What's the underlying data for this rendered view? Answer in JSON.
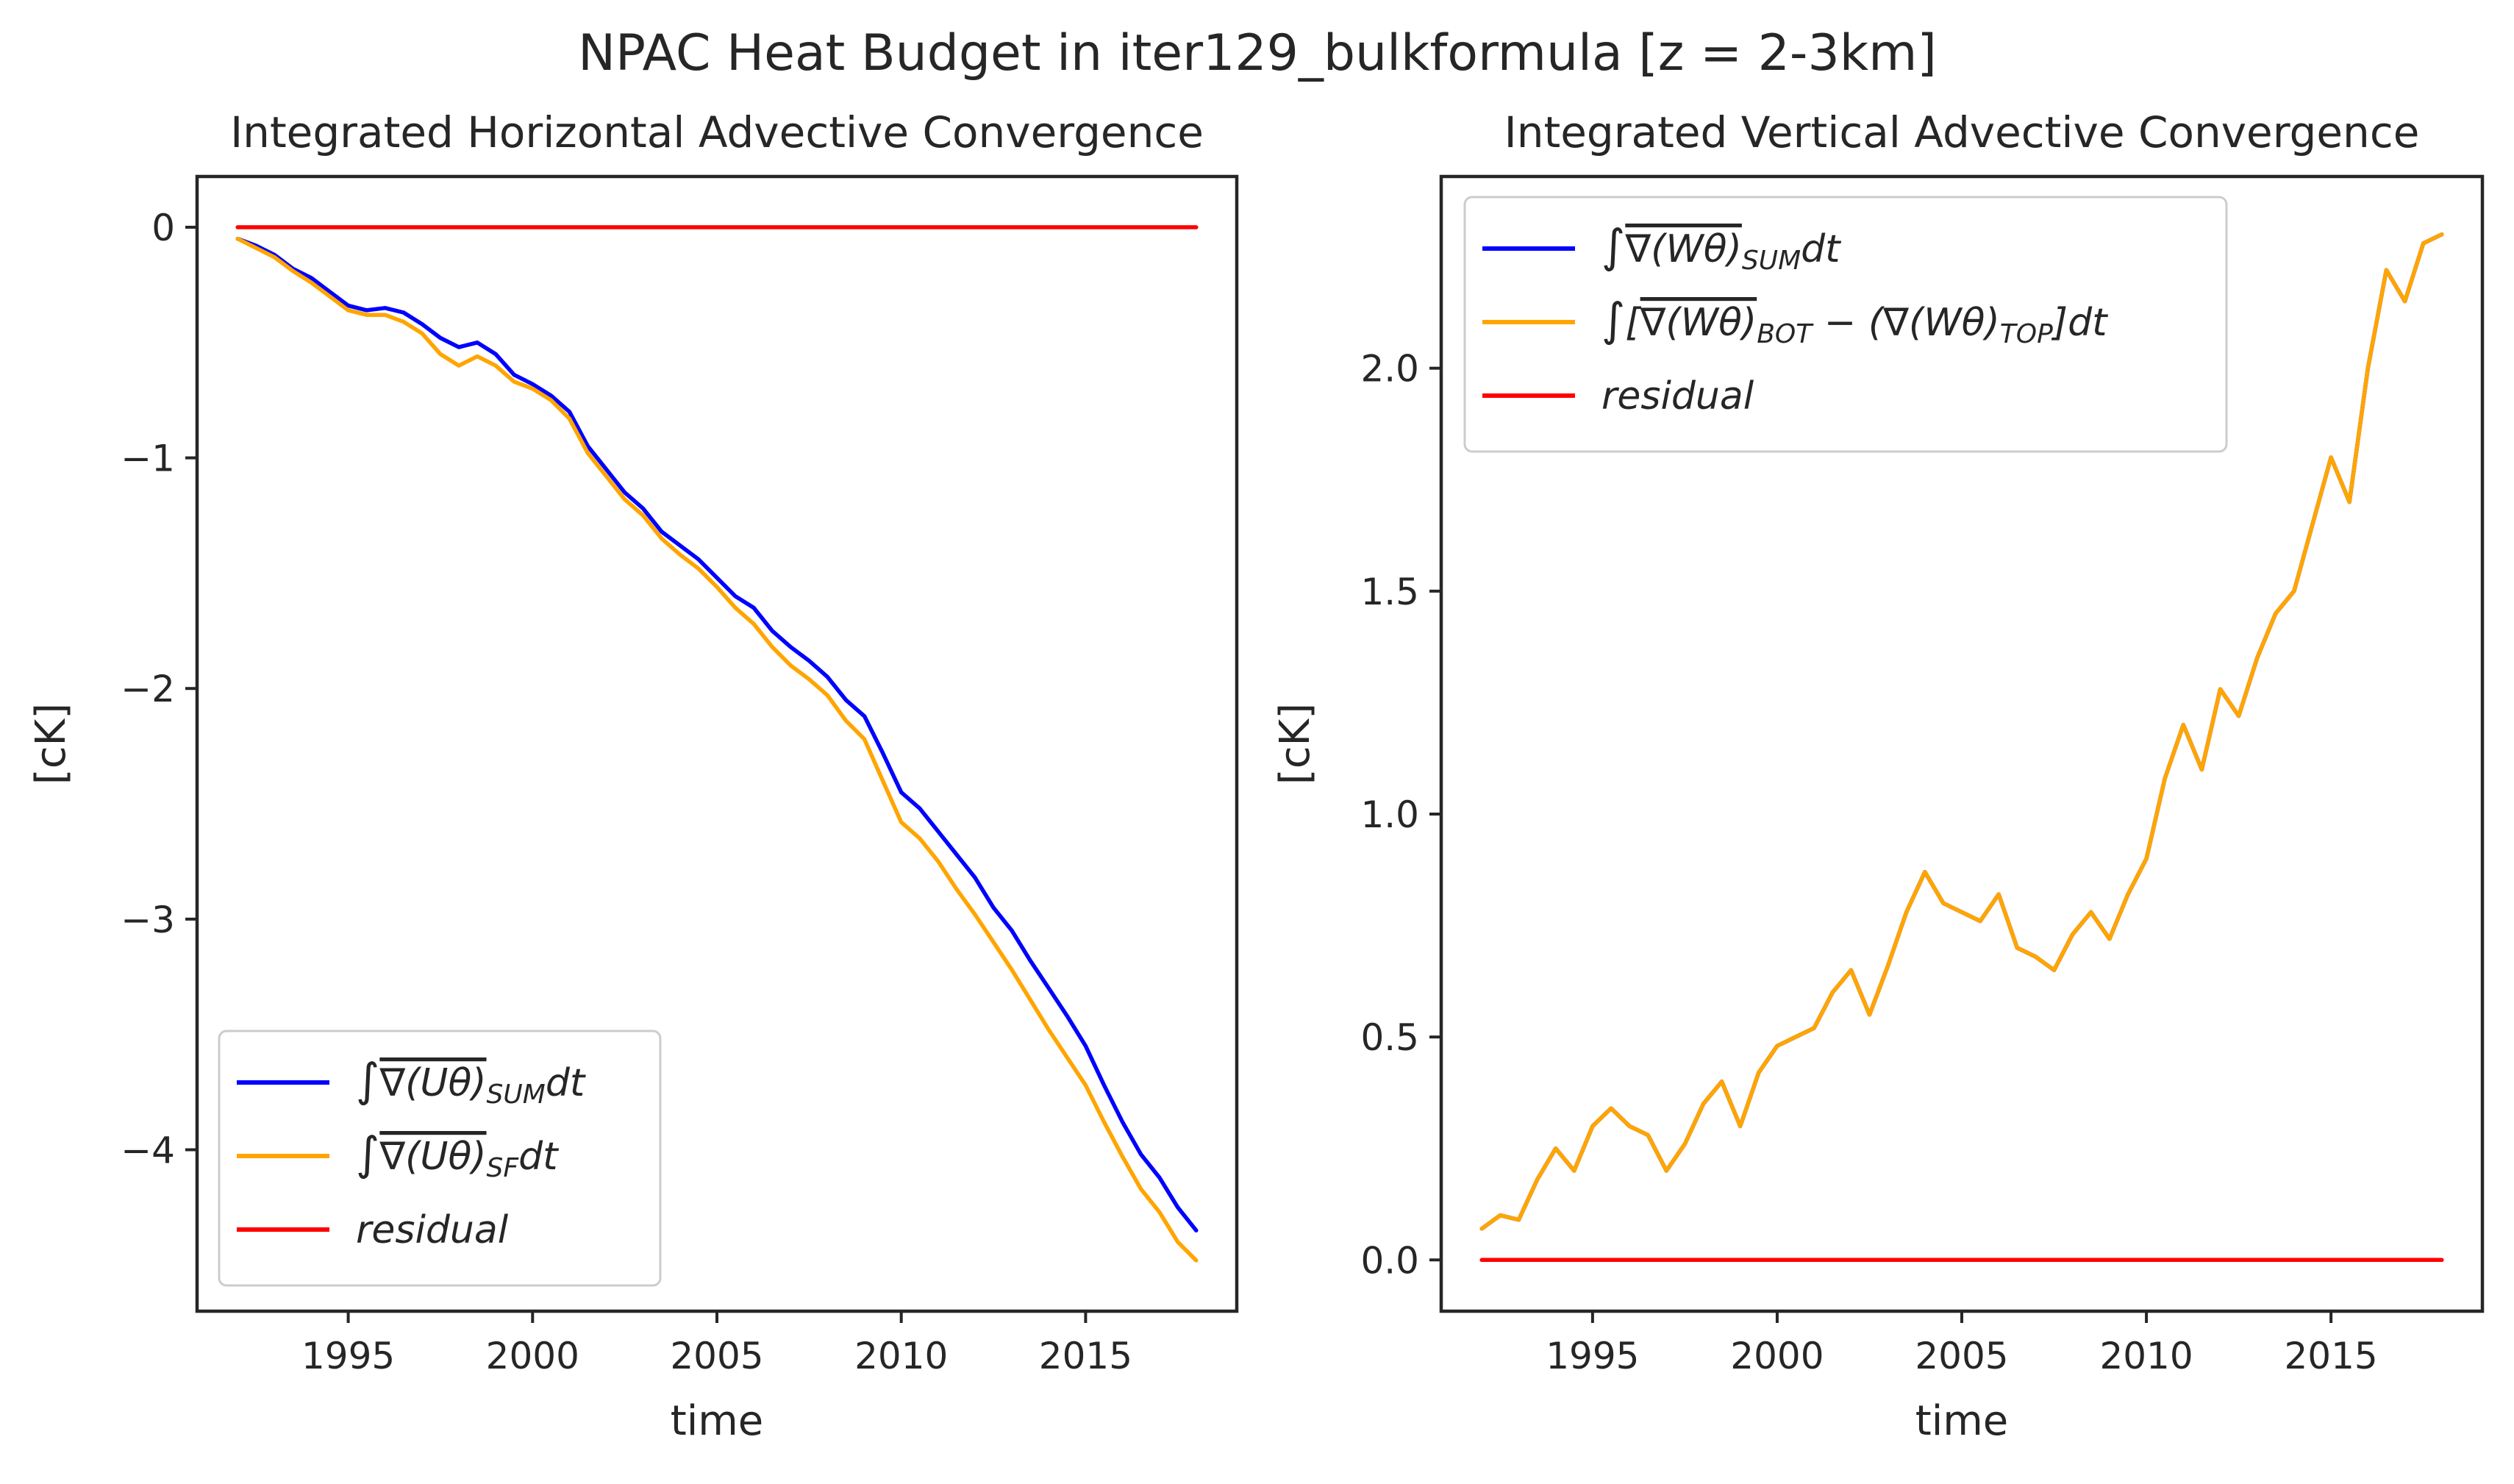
{
  "figure": {
    "suptitle": "NPAC Heat Budget in iter129_bulkformula [z = 2-3km]"
  },
  "chart_data": [
    {
      "type": "line",
      "title": "Integrated Horizontal Advective Convergence",
      "xlabel": "time",
      "ylabel": "[cK]",
      "xlim": [
        1990.9,
        2019.1
      ],
      "ylim": [
        -4.7,
        0.22
      ],
      "xticks": [
        1995,
        2000,
        2005,
        2010,
        2015
      ],
      "yticks": [
        0,
        -1,
        -2,
        -3,
        -4
      ],
      "ytick_labels": [
        "0",
        "−1",
        "−2",
        "−3",
        "−4"
      ],
      "grid": false,
      "legend_position": "lower-left",
      "series": [
        {
          "legend_parts": [
            [
              "∫",
              "n"
            ],
            [
              "∇(Uθ)",
              "o"
            ],
            [
              "SUM",
              "s"
            ],
            [
              "dt",
              "n"
            ]
          ],
          "color": "#0000ff",
          "x": [
            1992.0,
            1992.5,
            1993.0,
            1993.5,
            1994.0,
            1994.5,
            1995.0,
            1995.5,
            1996.0,
            1996.5,
            1997.0,
            1997.5,
            1998.0,
            1998.5,
            1999.0,
            1999.5,
            2000.0,
            2000.5,
            2001.0,
            2001.5,
            2002.0,
            2002.5,
            2003.0,
            2003.5,
            2004.0,
            2004.5,
            2005.0,
            2005.5,
            2006.0,
            2006.5,
            2007.0,
            2007.5,
            2008.0,
            2008.5,
            2009.0,
            2009.5,
            2010.0,
            2010.5,
            2011.0,
            2011.5,
            2012.0,
            2012.5,
            2013.0,
            2013.5,
            2014.0,
            2014.5,
            2015.0,
            2015.5,
            2016.0,
            2016.5,
            2017.0,
            2017.5,
            2018.0
          ],
          "y": [
            -0.05,
            -0.08,
            -0.12,
            -0.18,
            -0.22,
            -0.28,
            -0.34,
            -0.36,
            -0.35,
            -0.37,
            -0.42,
            -0.48,
            -0.52,
            -0.5,
            -0.55,
            -0.64,
            -0.68,
            -0.73,
            -0.8,
            -0.95,
            -1.05,
            -1.15,
            -1.22,
            -1.32,
            -1.38,
            -1.44,
            -1.52,
            -1.6,
            -1.65,
            -1.75,
            -1.82,
            -1.88,
            -1.95,
            -2.05,
            -2.12,
            -2.28,
            -2.45,
            -2.52,
            -2.62,
            -2.72,
            -2.82,
            -2.95,
            -3.05,
            -3.18,
            -3.3,
            -3.42,
            -3.55,
            -3.72,
            -3.88,
            -4.02,
            -4.12,
            -4.25,
            -4.35
          ]
        },
        {
          "legend_parts": [
            [
              "∫",
              "n"
            ],
            [
              "∇(Uθ)",
              "o"
            ],
            [
              "SF",
              "s"
            ],
            [
              "dt",
              "n"
            ]
          ],
          "color": "#ffa500",
          "x": [
            1992.0,
            1992.5,
            1993.0,
            1993.5,
            1994.0,
            1994.5,
            1995.0,
            1995.5,
            1996.0,
            1996.5,
            1997.0,
            1997.5,
            1998.0,
            1998.5,
            1999.0,
            1999.5,
            2000.0,
            2000.5,
            2001.0,
            2001.5,
            2002.0,
            2002.5,
            2003.0,
            2003.5,
            2004.0,
            2004.5,
            2005.0,
            2005.5,
            2006.0,
            2006.5,
            2007.0,
            2007.5,
            2008.0,
            2008.5,
            2009.0,
            2009.5,
            2010.0,
            2010.5,
            2011.0,
            2011.5,
            2012.0,
            2012.5,
            2013.0,
            2013.5,
            2014.0,
            2014.5,
            2015.0,
            2015.5,
            2016.0,
            2016.5,
            2017.0,
            2017.5,
            2018.0
          ],
          "y": [
            -0.05,
            -0.09,
            -0.13,
            -0.19,
            -0.24,
            -0.3,
            -0.36,
            -0.38,
            -0.38,
            -0.41,
            -0.46,
            -0.55,
            -0.6,
            -0.56,
            -0.6,
            -0.67,
            -0.7,
            -0.75,
            -0.83,
            -0.98,
            -1.08,
            -1.18,
            -1.25,
            -1.35,
            -1.42,
            -1.48,
            -1.56,
            -1.65,
            -1.72,
            -1.82,
            -1.9,
            -1.96,
            -2.03,
            -2.14,
            -2.22,
            -2.4,
            -2.58,
            -2.65,
            -2.75,
            -2.87,
            -2.98,
            -3.1,
            -3.22,
            -3.35,
            -3.48,
            -3.6,
            -3.72,
            -3.88,
            -4.03,
            -4.17,
            -4.27,
            -4.4,
            -4.48
          ]
        },
        {
          "legend_parts": [
            [
              "residual",
              "n"
            ]
          ],
          "color": "#ff0000",
          "x": [
            1992.0,
            2018.0
          ],
          "y": [
            0.0,
            0.0
          ]
        }
      ]
    },
    {
      "type": "line",
      "title": "Integrated Vertical Advective Convergence",
      "xlabel": "time",
      "ylabel": "[cK]",
      "xlim": [
        1990.9,
        2019.1
      ],
      "ylim": [
        -0.115,
        2.43
      ],
      "xticks": [
        1995,
        2000,
        2005,
        2010,
        2015
      ],
      "yticks": [
        0.0,
        0.5,
        1.0,
        1.5,
        2.0
      ],
      "ytick_labels": [
        "0.0",
        "0.5",
        "1.0",
        "1.5",
        "2.0"
      ],
      "grid": false,
      "legend_position": "upper-left",
      "series": [
        {
          "legend_parts": [
            [
              "∫",
              "n"
            ],
            [
              "∇(Wθ)",
              "o"
            ],
            [
              "SUM",
              "s"
            ],
            [
              "dt",
              "n"
            ]
          ],
          "color": "#0000ff",
          "x": [
            1992.0,
            1992.5,
            1993.0,
            1993.5,
            1994.0,
            1994.5,
            1995.0,
            1995.5,
            1996.0,
            1996.5,
            1997.0,
            1997.5,
            1998.0,
            1998.5,
            1999.0,
            1999.5,
            2000.0,
            2000.5,
            2001.0,
            2001.5,
            2002.0,
            2002.5,
            2003.0,
            2003.5,
            2004.0,
            2004.5,
            2005.0,
            2005.5,
            2006.0,
            2006.5,
            2007.0,
            2007.5,
            2008.0,
            2008.5,
            2009.0,
            2009.5,
            2010.0,
            2010.5,
            2011.0,
            2011.5,
            2012.0,
            2012.5,
            2013.0,
            2013.5,
            2014.0,
            2014.5,
            2015.0,
            2015.5,
            2016.0,
            2016.5,
            2017.0,
            2017.5,
            2018.0
          ],
          "y": [
            0.07,
            0.1,
            0.09,
            0.18,
            0.25,
            0.2,
            0.3,
            0.34,
            0.3,
            0.28,
            0.2,
            0.26,
            0.35,
            0.4,
            0.3,
            0.42,
            0.48,
            0.5,
            0.52,
            0.6,
            0.65,
            0.55,
            0.66,
            0.78,
            0.87,
            0.8,
            0.78,
            0.76,
            0.82,
            0.7,
            0.68,
            0.65,
            0.73,
            0.78,
            0.72,
            0.82,
            0.9,
            1.08,
            1.2,
            1.1,
            1.28,
            1.22,
            1.35,
            1.45,
            1.5,
            1.65,
            1.8,
            1.7,
            2.0,
            2.22,
            2.15,
            2.28,
            2.3
          ]
        },
        {
          "legend_parts": [
            [
              "∫",
              "n"
            ],
            [
              "[",
              "n"
            ],
            [
              "∇(Wθ)",
              "o"
            ],
            [
              "BOT",
              "s"
            ],
            [
              " − (∇(Wθ)",
              "n"
            ],
            [
              "TOP",
              "s"
            ],
            [
              "]dt",
              "n"
            ]
          ],
          "color": "#ffa500",
          "x": [
            1992.0,
            1992.5,
            1993.0,
            1993.5,
            1994.0,
            1994.5,
            1995.0,
            1995.5,
            1996.0,
            1996.5,
            1997.0,
            1997.5,
            1998.0,
            1998.5,
            1999.0,
            1999.5,
            2000.0,
            2000.5,
            2001.0,
            2001.5,
            2002.0,
            2002.5,
            2003.0,
            2003.5,
            2004.0,
            2004.5,
            2005.0,
            2005.5,
            2006.0,
            2006.5,
            2007.0,
            2007.5,
            2008.0,
            2008.5,
            2009.0,
            2009.5,
            2010.0,
            2010.5,
            2011.0,
            2011.5,
            2012.0,
            2012.5,
            2013.0,
            2013.5,
            2014.0,
            2014.5,
            2015.0,
            2015.5,
            2016.0,
            2016.5,
            2017.0,
            2017.5,
            2018.0
          ],
          "y": [
            0.07,
            0.1,
            0.09,
            0.18,
            0.25,
            0.2,
            0.3,
            0.34,
            0.3,
            0.28,
            0.2,
            0.26,
            0.35,
            0.4,
            0.3,
            0.42,
            0.48,
            0.5,
            0.52,
            0.6,
            0.65,
            0.55,
            0.66,
            0.78,
            0.87,
            0.8,
            0.78,
            0.76,
            0.82,
            0.7,
            0.68,
            0.65,
            0.73,
            0.78,
            0.72,
            0.82,
            0.9,
            1.08,
            1.2,
            1.1,
            1.28,
            1.22,
            1.35,
            1.45,
            1.5,
            1.65,
            1.8,
            1.7,
            2.0,
            2.22,
            2.15,
            2.28,
            2.3
          ]
        },
        {
          "legend_parts": [
            [
              "residual",
              "n"
            ]
          ],
          "color": "#ff0000",
          "x": [
            1992.0,
            2018.0
          ],
          "y": [
            0.0,
            0.0
          ]
        }
      ]
    }
  ]
}
